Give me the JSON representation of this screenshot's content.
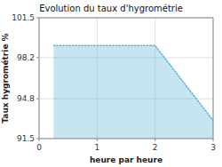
{
  "chart_data": {
    "type": "area",
    "title": "Evolution du taux d'hygrométrie",
    "xlabel": "heure par heure",
    "ylabel": "Taux hygrométrie %",
    "x": [
      0.25,
      2.0,
      3.0
    ],
    "values": [
      99.2,
      99.2,
      93.0
    ],
    "color": "#5ab4d6",
    "line_style": "dotted",
    "xlim": [
      0,
      3
    ],
    "ylim": [
      91.5,
      101.5
    ],
    "xticks": [
      0,
      1,
      2,
      3
    ],
    "yticks": [
      91.5,
      94.8,
      98.2,
      101.5
    ],
    "grid": true
  }
}
